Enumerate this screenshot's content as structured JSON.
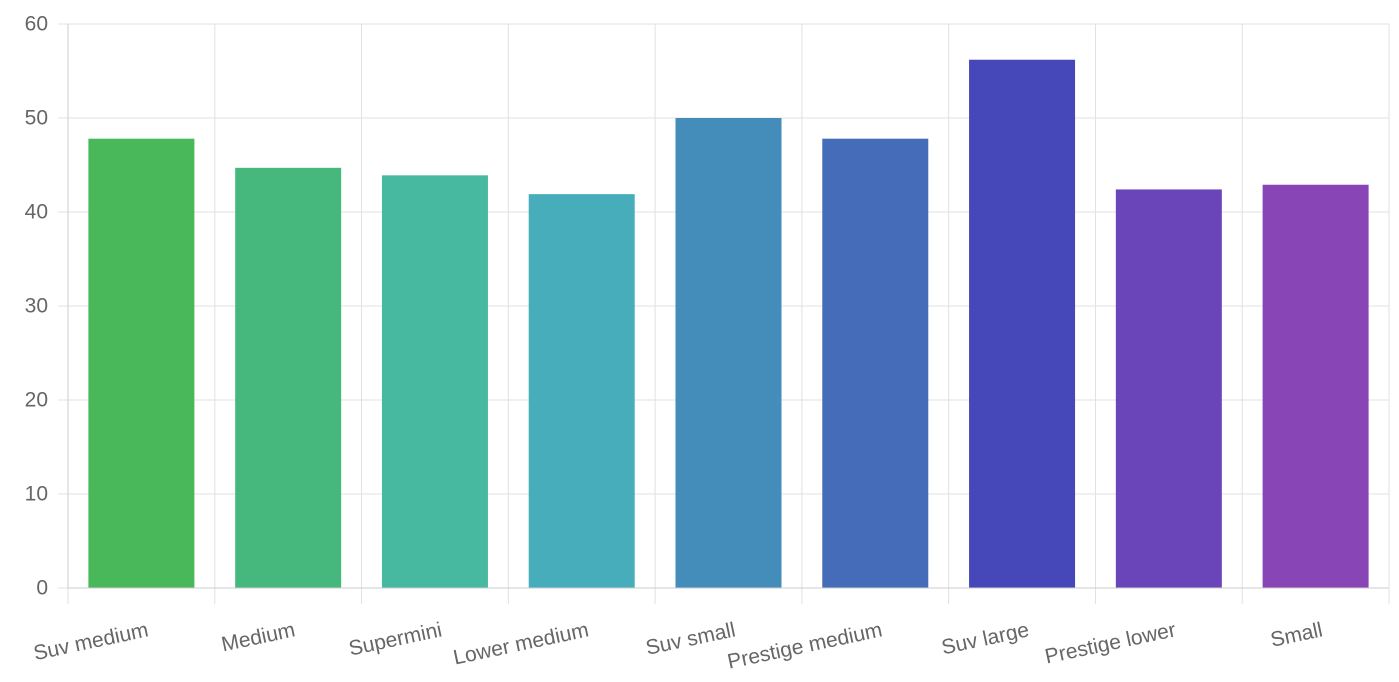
{
  "chart_data": {
    "type": "bar",
    "categories": [
      "Suv medium",
      "Medium",
      "Supermini",
      "Lower medium",
      "Suv small",
      "Prestige medium",
      "Suv large",
      "Prestige lower",
      "Small"
    ],
    "values": [
      47.8,
      44.7,
      43.9,
      41.9,
      50.0,
      47.8,
      56.2,
      42.4,
      42.9
    ],
    "colors": [
      "#48b85a",
      "#46b87d",
      "#47b9a0",
      "#47adbb",
      "#448dba",
      "#446cb9",
      "#4648b9",
      "#6945b9",
      "#8745b6"
    ],
    "yticks": [
      0,
      10,
      20,
      30,
      40,
      50,
      60
    ],
    "ylim": [
      0,
      60
    ],
    "grid": true,
    "title": "",
    "xlabel": "",
    "ylabel": ""
  }
}
